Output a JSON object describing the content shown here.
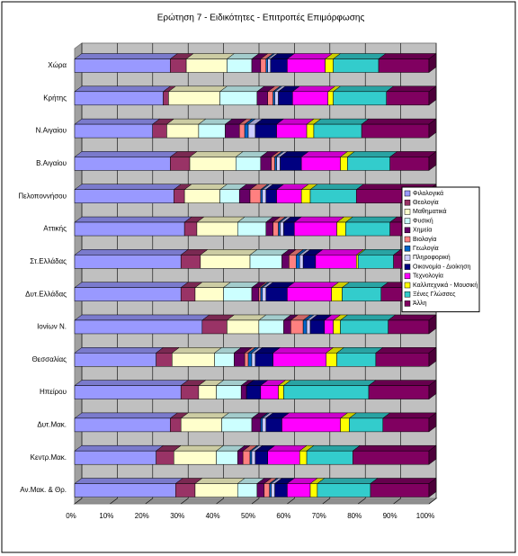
{
  "chart_data": {
    "type": "bar",
    "orientation": "horizontal",
    "stacked": "percent",
    "title": "Ερώτηση 7 - Ειδικότητες - Επιτροπές Επιμόρφωσης",
    "categories": [
      "Χώρα",
      "Κρήτης",
      "Ν.Αιγαίου",
      "Β.Αιγαίου",
      "Πελοποννήσου",
      "Αττικής",
      "Στ.Ελλάδας",
      "Δυτ.Ελλάδας",
      "Ιονίων Ν.",
      "Θεσσαλίας",
      "Ηπείρου",
      "Δυτ.Μακ.",
      "Κεντρ.Μακ.",
      "Αν.Μακ. & Θρ."
    ],
    "series": [
      {
        "name": "Φιλολογικά",
        "color": "#9999ff",
        "values": [
          27,
          25,
          22,
          27,
          28,
          31,
          30,
          30,
          36,
          23,
          30,
          27,
          23,
          28.5
        ]
      },
      {
        "name": "Θεολογία",
        "color": "#993366",
        "values": [
          4.5,
          1.5,
          4,
          5.5,
          3,
          3.5,
          5.5,
          4,
          7,
          4.5,
          5,
          3,
          5,
          5.5
        ]
      },
      {
        "name": "Μαθηματικά",
        "color": "#ffffcc",
        "values": [
          11.5,
          14.5,
          9,
          13,
          10,
          11.5,
          14,
          8,
          9,
          12,
          5,
          11.5,
          12,
          12
        ]
      },
      {
        "name": "Φυσική",
        "color": "#ccffff",
        "values": [
          7,
          10.5,
          7.5,
          7,
          5.5,
          8,
          9,
          8,
          7,
          5.5,
          7,
          8.5,
          6,
          5.5
        ]
      },
      {
        "name": "Χημεία",
        "color": "#660066",
        "values": [
          2.5,
          3,
          4,
          3,
          3,
          2,
          2,
          2,
          2,
          3,
          1.5,
          2.5,
          1.5,
          2
        ]
      },
      {
        "name": "Βιολογία",
        "color": "#ff8080",
        "values": [
          1.5,
          1.5,
          1.5,
          1,
          3,
          1.5,
          2,
          0.5,
          3.5,
          1,
          0,
          0,
          2,
          1.5
        ]
      },
      {
        "name": "Γεωλογία",
        "color": "#0066cc",
        "values": [
          0.5,
          0.5,
          1,
          0.5,
          0.5,
          0.5,
          1,
          0.5,
          1,
          1,
          0,
          0.5,
          0.5,
          0.5
        ]
      },
      {
        "name": "Πληροφορική",
        "color": "#ccccff",
        "values": [
          0.8,
          1,
          2,
          1,
          1,
          1,
          1,
          1,
          1,
          1,
          0,
          1,
          1,
          1
        ]
      },
      {
        "name": "Οικονομία - Διοίκηση",
        "color": "#000080",
        "values": [
          4.7,
          4,
          6,
          6,
          3,
          3,
          3.5,
          6,
          4,
          5,
          4,
          4.5,
          3.5,
          3.5
        ]
      },
      {
        "name": "Τεχνολογία",
        "color": "#ff00ff",
        "values": [
          10.7,
          10,
          8.5,
          11,
          7,
          12,
          11.5,
          12.5,
          2.5,
          15,
          5,
          16.5,
          9,
          6.5
        ]
      },
      {
        "name": "Καλλιτεχνικά - Μουσική",
        "color": "#ffff00",
        "values": [
          2.3,
          1.5,
          2,
          2,
          2.5,
          2.5,
          0.5,
          3,
          2,
          3,
          1.5,
          2.5,
          2,
          2
        ]
      },
      {
        "name": "Ξένες Γλώσσες",
        "color": "#33cccc",
        "values": [
          12.8,
          15,
          13.5,
          12,
          13,
          12.5,
          10,
          11,
          13.5,
          11,
          24,
          9.5,
          13,
          15
        ]
      },
      {
        "name": "Άλλη",
        "color": "#800060",
        "values": [
          14.2,
          12,
          19,
          11,
          20.5,
          11,
          10,
          13.5,
          11.5,
          15,
          17,
          13,
          21.5,
          16.5
        ]
      }
    ],
    "xlim": [
      0,
      100
    ],
    "xticks": [
      {
        "value": 0,
        "label": "0%"
      },
      {
        "value": 10,
        "label": "10%"
      },
      {
        "value": 20,
        "label": "20%"
      },
      {
        "value": 30,
        "label": "30%"
      },
      {
        "value": 40,
        "label": "40%"
      },
      {
        "value": 50,
        "label": "50%"
      },
      {
        "value": 60,
        "label": "60%"
      },
      {
        "value": 70,
        "label": "70%"
      },
      {
        "value": 80,
        "label": "80%"
      },
      {
        "value": 90,
        "label": "90%"
      },
      {
        "value": 100,
        "label": "100%"
      }
    ],
    "grid": true,
    "legend": "right"
  }
}
